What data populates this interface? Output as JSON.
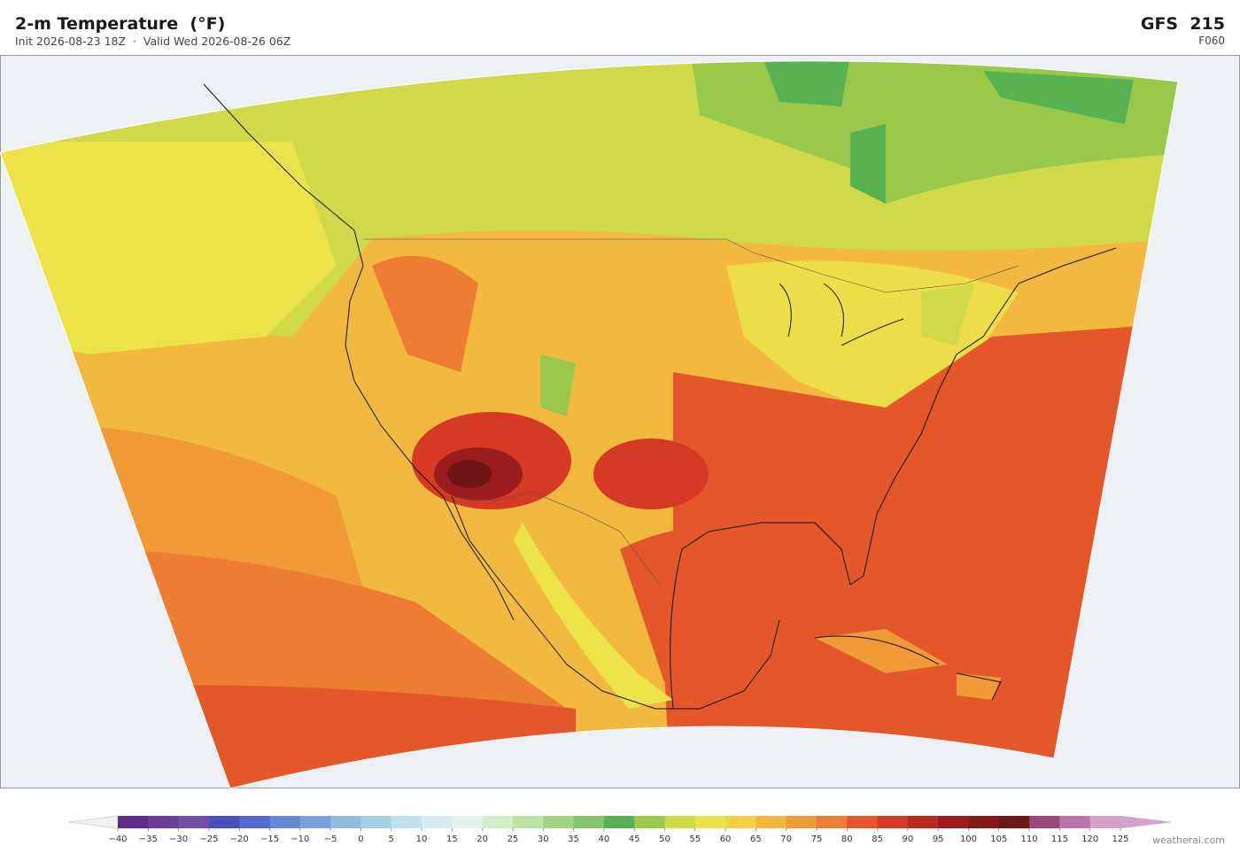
{
  "header": {
    "title": "2-m Temperature  (°F)",
    "subtitle": "Init 2026-08-23 18Z  ·  Valid Wed 2026-08-26 06Z",
    "model": "GFS  215",
    "forecast_hour": "F060"
  },
  "colorbar": {
    "ticks": [
      {
        "value": -40,
        "label": "−40"
      },
      {
        "value": -35,
        "label": "−35"
      },
      {
        "value": -30,
        "label": "−30"
      },
      {
        "value": -25,
        "label": "−25"
      },
      {
        "value": -20,
        "label": "−20"
      },
      {
        "value": -15,
        "label": "−15"
      },
      {
        "value": -10,
        "label": "−10"
      },
      {
        "value": -5,
        "label": "−5"
      },
      0,
      5,
      10,
      15,
      20,
      25,
      30,
      35,
      40,
      45,
      50,
      55,
      60,
      65,
      70,
      75,
      80,
      85,
      90,
      95,
      100,
      105,
      110,
      115,
      120,
      125
    ],
    "colors": [
      "#5a2d8f",
      "#6a3c9c",
      "#7150ac",
      "#4a4fc0",
      "#4f6bd0",
      "#6488d8",
      "#7aa0dc",
      "#92badf",
      "#a8cfe6",
      "#bfe0ee",
      "#d5ecf2",
      "#e4f3ee",
      "#d4ecc8",
      "#bde3a0",
      "#a0d585",
      "#82c66a",
      "#58b252",
      "#9ac84a",
      "#cfd94a",
      "#ece24a",
      "#f5cf48",
      "#f3b840",
      "#f09a38",
      "#ec7d32",
      "#e4572a",
      "#d43a24",
      "#bb2a20",
      "#9a1c1c",
      "#841818",
      "#6e1616",
      "#9a4878",
      "#bc76aa",
      "#d6a0c8"
    ],
    "under_color": "#f2f2f2",
    "over_color": "#d6a0c8"
  },
  "footer": {
    "credit": "weatherai.com"
  }
}
